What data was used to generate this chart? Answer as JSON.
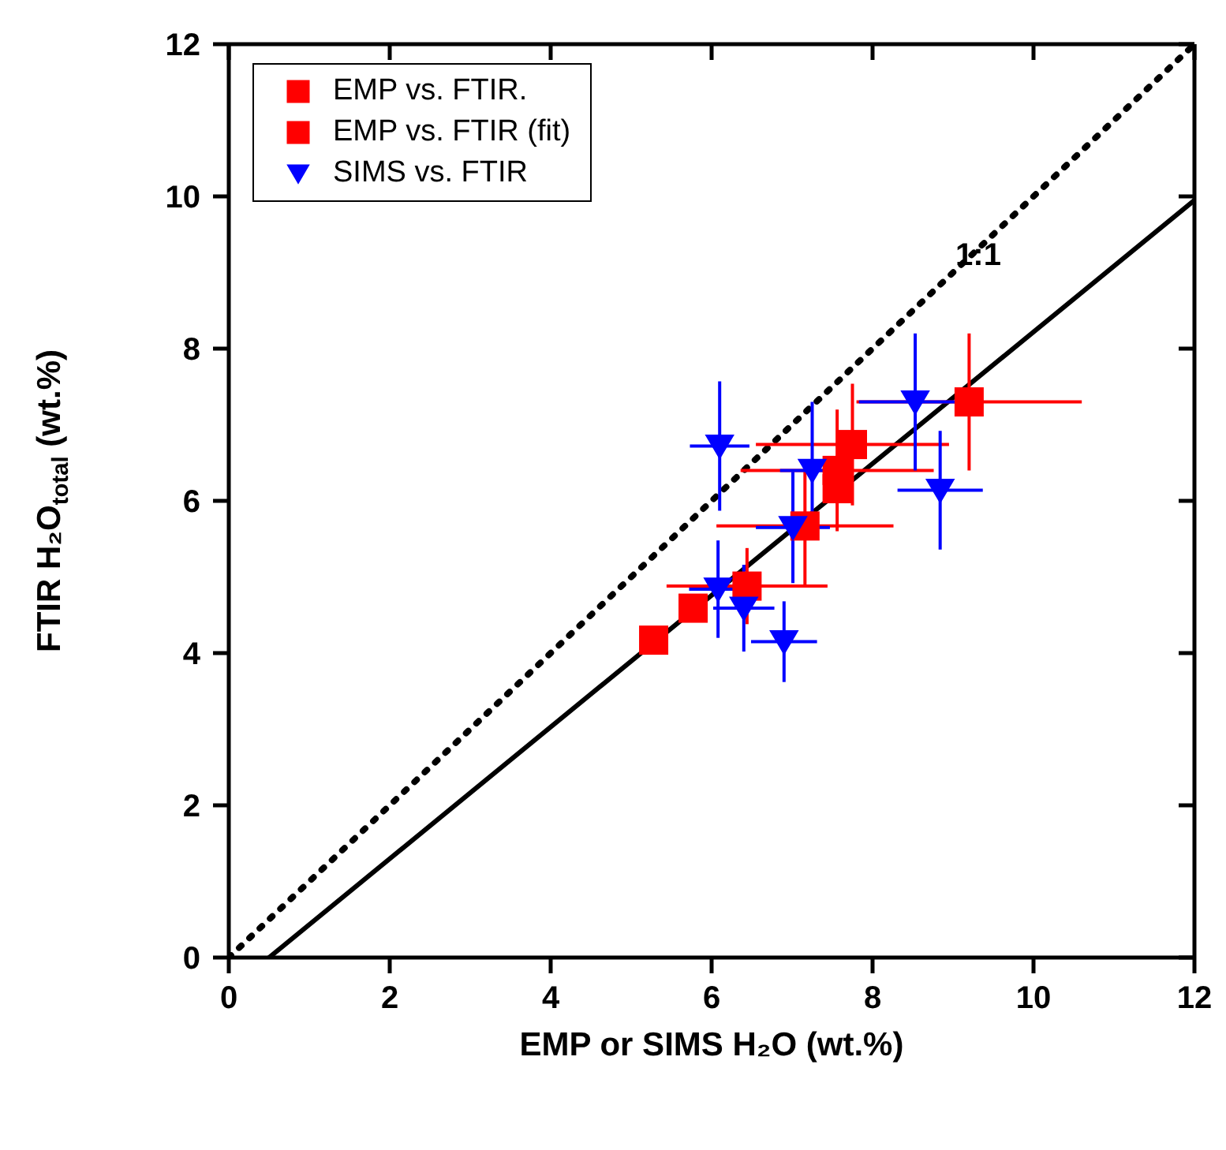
{
  "chart_data": {
    "type": "scatter",
    "xlabel": "EMP or SIMS H₂O (wt.%)",
    "ylabel": "FTIR H₂O$_{total}$ (wt.%)",
    "xlim": [
      0,
      12
    ],
    "xticks": [
      0,
      2,
      4,
      6,
      8,
      10,
      12
    ],
    "ylim": [
      0,
      12
    ],
    "yticks": [
      0,
      2,
      4,
      6,
      8,
      10,
      12
    ],
    "grid": false,
    "legend": "top left",
    "annotations": [
      "1:1"
    ],
    "series": [
      {
        "type": "line",
        "color": "#000000",
        "line_style": "dotted",
        "marker": "none",
        "x": [
          0,
          12
        ],
        "values": [
          0,
          12
        ]
      },
      {
        "type": "line",
        "color": "#000000",
        "line_style": "solid",
        "marker": "none",
        "x": [
          0.5,
          12
        ],
        "values": [
          0,
          9.95
        ]
      },
      {
        "name": "EMP vs. FTIR.",
        "marker": "square",
        "color": "#ff0000",
        "x": [
          9.2,
          7.75,
          7.56,
          7.16,
          6.44
        ],
        "values": [
          7.3,
          6.74,
          6.4,
          5.67,
          4.88
        ],
        "xerrors": [
          1.4,
          1.2,
          1.2,
          1.1,
          1.0
        ],
        "errors": [
          0.9,
          0.8,
          0.8,
          0.8,
          0.5
        ]
      },
      {
        "name": "EMP vs. FTIR (fit)",
        "marker": "square",
        "color": "#ff0000",
        "x": [
          7.56,
          5.77,
          5.28
        ],
        "values": [
          6.16,
          4.59,
          4.17
        ]
      },
      {
        "name": "SIMS vs. FTIR",
        "marker": "triangle",
        "color": "#0000ff",
        "x": [
          8.53,
          6.1,
          7.25,
          7.01,
          8.84,
          6.08,
          6.4,
          6.9
        ],
        "values": [
          7.3,
          6.72,
          6.4,
          5.65,
          6.14,
          4.84,
          4.59,
          4.15
        ],
        "xerrors": [
          0.7,
          0.37,
          0.4,
          0.46,
          0.53,
          0.36,
          0.38,
          0.41
        ],
        "errors": [
          0.9,
          0.85,
          0.9,
          0.73,
          0.78,
          0.64,
          0.57,
          0.53
        ]
      }
    ]
  }
}
